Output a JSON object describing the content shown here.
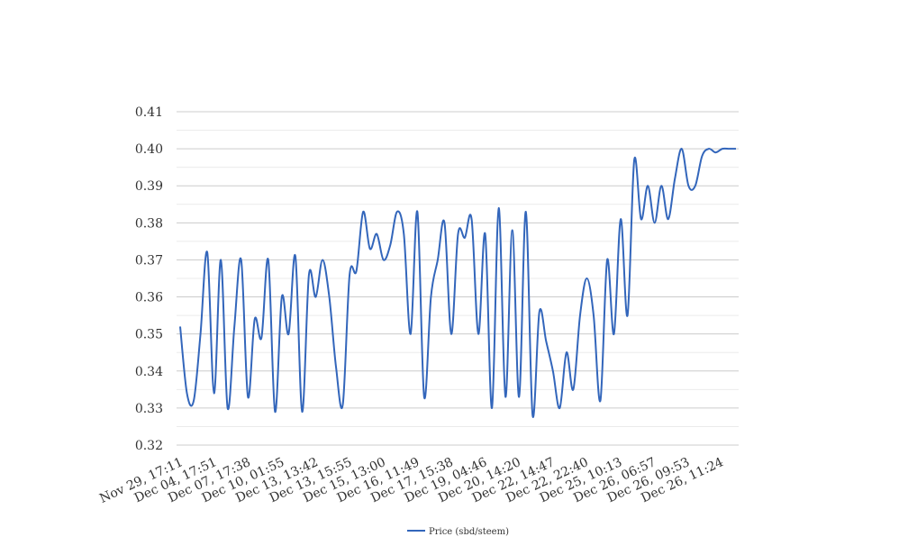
{
  "chart_data": {
    "type": "line",
    "title": "",
    "xlabel": "",
    "ylabel": "",
    "ylim": [
      0.32,
      0.41
    ],
    "yticks": [
      "0.32",
      "0.33",
      "0.34",
      "0.35",
      "0.36",
      "0.37",
      "0.38",
      "0.39",
      "0.40",
      "0.41"
    ],
    "xticks": [
      "Nov 29, 17:11",
      "Dec 04, 17:51",
      "Dec 07, 17:38",
      "Dec 10, 01:55",
      "Dec 13, 13:42",
      "Dec 13, 15:55",
      "Dec 15, 13:00",
      "Dec 16, 11:49",
      "Dec 17, 15:38",
      "Dec 19, 04:46",
      "Dec 20, 14:20",
      "Dec 22, 14:47",
      "Dec 22, 22:40",
      "Dec 25, 10:13",
      "Dec 26, 06:57",
      "Dec 26, 09:53",
      "Dec 26, 11:24"
    ],
    "grid": true,
    "legend_position": "bottom",
    "series": [
      {
        "name": "Price (sbd/steem)",
        "color": "#3366bb",
        "values": [
          0.352,
          0.334,
          0.332,
          0.35,
          0.372,
          0.334,
          0.37,
          0.33,
          0.352,
          0.37,
          0.333,
          0.354,
          0.349,
          0.37,
          0.329,
          0.36,
          0.35,
          0.371,
          0.329,
          0.366,
          0.36,
          0.37,
          0.36,
          0.341,
          0.331,
          0.366,
          0.367,
          0.383,
          0.373,
          0.377,
          0.37,
          0.374,
          0.383,
          0.377,
          0.35,
          0.383,
          0.333,
          0.36,
          0.37,
          0.38,
          0.35,
          0.377,
          0.376,
          0.381,
          0.35,
          0.377,
          0.33,
          0.384,
          0.333,
          0.378,
          0.333,
          0.383,
          0.328,
          0.356,
          0.348,
          0.34,
          0.33,
          0.345,
          0.335,
          0.355,
          0.365,
          0.355,
          0.332,
          0.37,
          0.35,
          0.381,
          0.355,
          0.397,
          0.381,
          0.39,
          0.38,
          0.39,
          0.381,
          0.392,
          0.4,
          0.39,
          0.39,
          0.398,
          0.4,
          0.399,
          0.4,
          0.4,
          0.4
        ]
      }
    ]
  }
}
